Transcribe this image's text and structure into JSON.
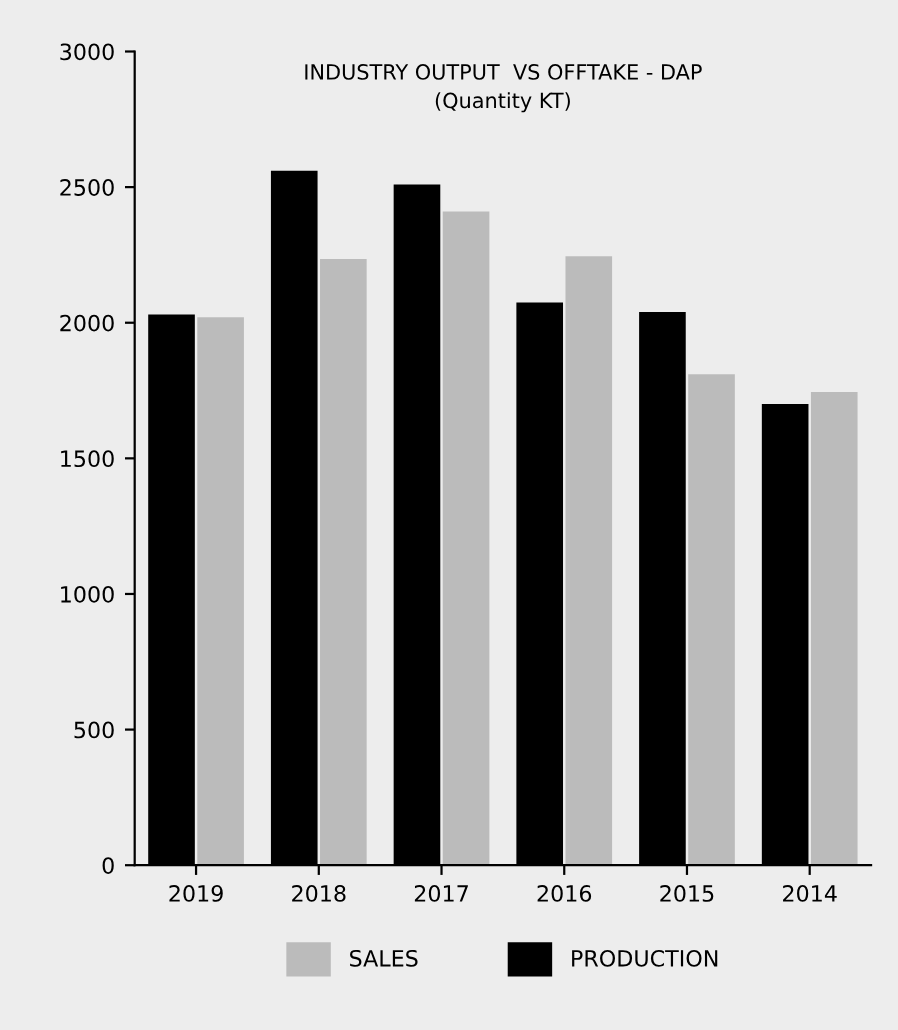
{
  "chart_data": {
    "type": "bar",
    "title": "INDUSTRY OUTPUT  VS OFFTAKE - DAP",
    "subtitle": "(Quantity KT)",
    "categories": [
      "2019",
      "2018",
      "2017",
      "2016",
      "2015",
      "2014"
    ],
    "series": [
      {
        "name": "PRODUCTION",
        "color": "#000000",
        "values": [
          2030,
          2560,
          2510,
          2075,
          2040,
          1700
        ]
      },
      {
        "name": "SALES",
        "color": "#bbbbbb",
        "values": [
          2020,
          2235,
          2410,
          2245,
          1810,
          1745
        ]
      }
    ],
    "ylim": [
      0,
      3000
    ],
    "yticks": [
      0,
      500,
      1000,
      1500,
      2000,
      2500,
      3000
    ],
    "grid": false,
    "legend": "bottom"
  }
}
